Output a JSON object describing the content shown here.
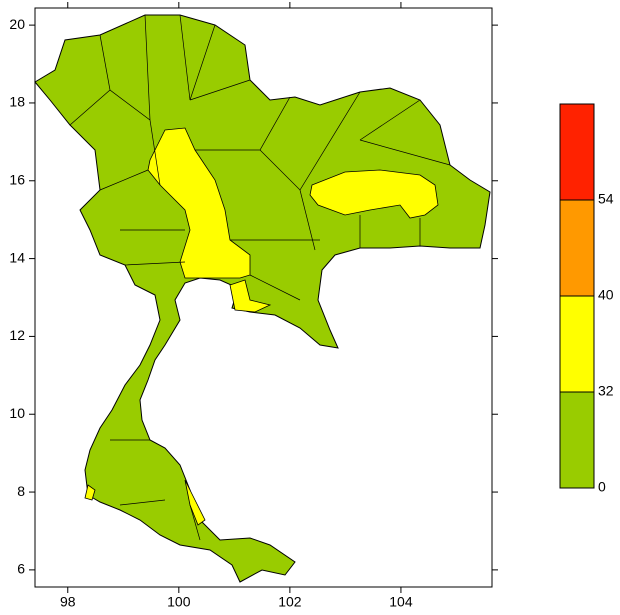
{
  "map": {
    "xlim": [
      97.41,
      105.64
    ],
    "ylim": [
      5.56,
      20.44
    ],
    "xticks": [
      98,
      100,
      102,
      104
    ],
    "yticks": [
      6,
      8,
      10,
      12,
      14,
      16,
      18,
      20
    ],
    "legend": {
      "levels": [
        0,
        32,
        40,
        54
      ],
      "colors": [
        "#99cc00",
        "#ffff00",
        "#ff9900",
        "#ff2200"
      ]
    }
  }
}
